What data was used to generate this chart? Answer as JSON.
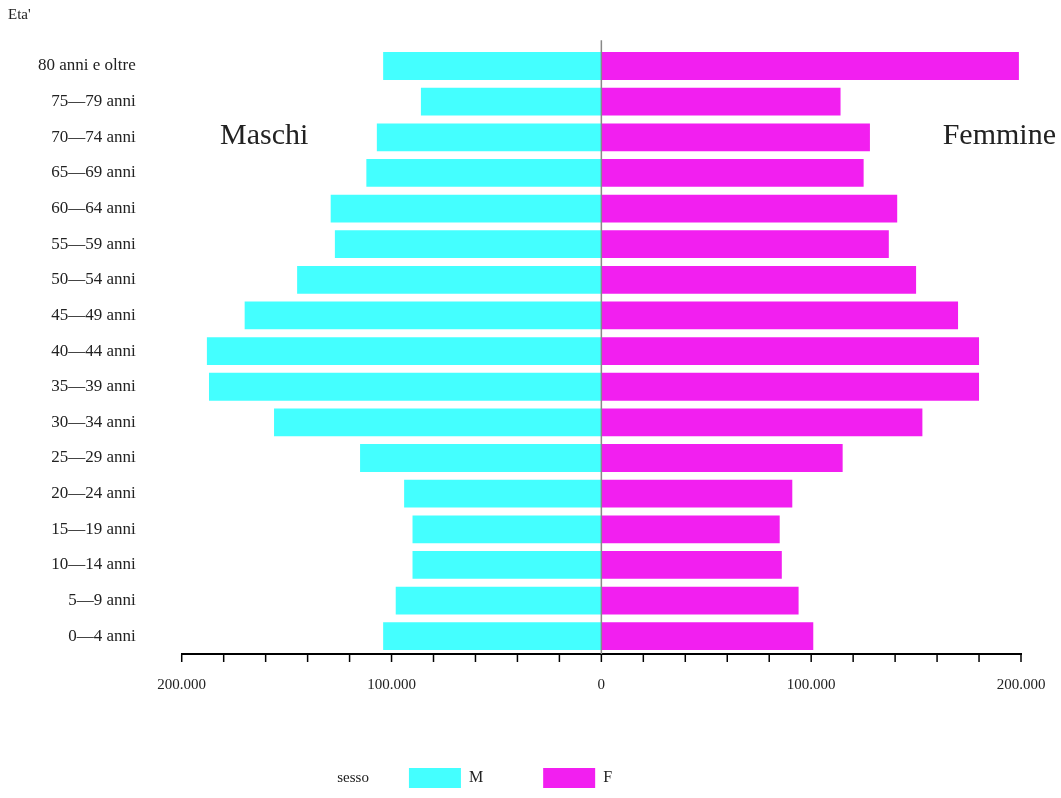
{
  "chart_data": {
    "type": "bar",
    "orientation": "horizontal",
    "stacked": true,
    "ylabel": "Eta'",
    "legend": "bottom",
    "legend_title": "sesso",
    "grid": false,
    "categories": [
      "80 anni e oltre",
      "75—79 anni",
      "70—74 anni",
      "65—69 anni",
      "60—64 anni",
      "55—59 anni",
      "50—54 anni",
      "45—49 anni",
      "40—44 anni",
      "35—39 anni",
      "30—34 anni",
      "25—29 anni",
      "20—24 anni",
      "15—19 anni",
      "10—14 anni",
      "5—9 anni",
      "0—4 anni"
    ],
    "series": [
      {
        "name": "M",
        "color": "#44ffff",
        "values": [
          -104000,
          -86000,
          -107000,
          -112000,
          -129000,
          -127000,
          -145000,
          -170000,
          -188000,
          -187000,
          -156000,
          -115000,
          -94000,
          -90000,
          -90000,
          -98000,
          -104000
        ]
      },
      {
        "name": "F",
        "color": "#f21ff0",
        "values": [
          199000,
          114000,
          128000,
          125000,
          141000,
          137000,
          150000,
          170000,
          180000,
          180000,
          153000,
          115000,
          91000,
          85000,
          86000,
          94000,
          101000
        ]
      }
    ],
    "xlim": [
      -200000,
      200000
    ],
    "xticks": [
      {
        "value": -200000,
        "label": "200.000"
      },
      {
        "value": -180000,
        "label": null
      },
      {
        "value": -160000,
        "label": null
      },
      {
        "value": -140000,
        "label": null
      },
      {
        "value": -120000,
        "label": null
      },
      {
        "value": -100000,
        "label": "100.000"
      },
      {
        "value": -80000,
        "label": null
      },
      {
        "value": -60000,
        "label": null
      },
      {
        "value": -40000,
        "label": null
      },
      {
        "value": -20000,
        "label": null
      },
      0,
      {
        "value": 20000,
        "label": null
      },
      {
        "value": 40000,
        "label": null
      },
      {
        "value": 60000,
        "label": null
      },
      {
        "value": 80000,
        "label": null
      },
      {
        "value": 100000,
        "label": "100.000"
      },
      {
        "value": 120000,
        "label": null
      },
      {
        "value": 140000,
        "label": null
      },
      {
        "value": 160000,
        "label": null
      },
      {
        "value": 180000,
        "label": null
      },
      {
        "value": 200000,
        "label": "200.000"
      }
    ],
    "ref_lines": [
      {
        "axis": "x",
        "value": 0,
        "color": "#888888"
      }
    ],
    "annotations": [
      "Maschi",
      "Femmine"
    ]
  }
}
